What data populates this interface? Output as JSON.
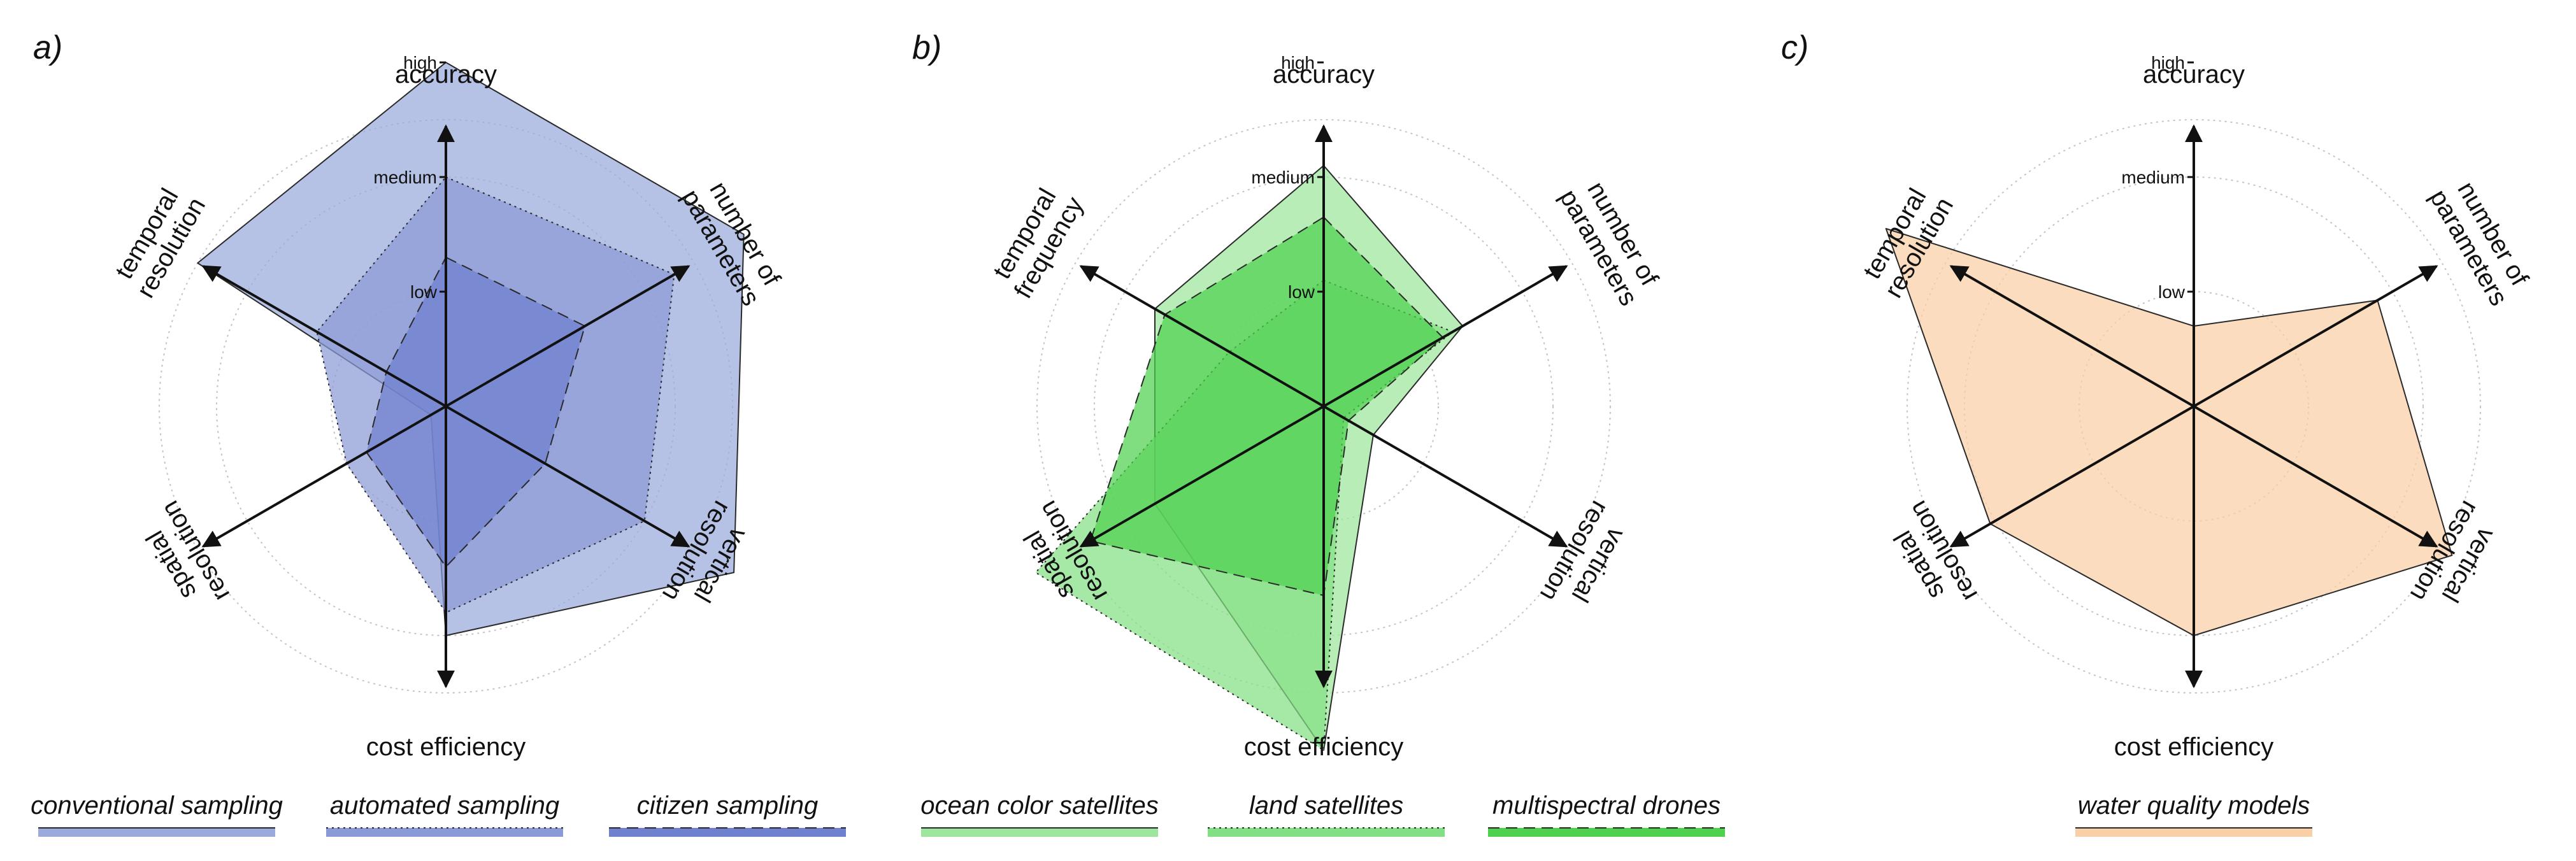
{
  "chart_data": [
    {
      "type": "radar",
      "panel": "a)",
      "axes": [
        "accuracy",
        "number of parameters",
        "vertical resolution",
        "cost efficiency",
        "spatial resolution",
        "temporal resolution"
      ],
      "axis_label_lines": [
        [
          "accuracy"
        ],
        [
          "number of",
          "parameters"
        ],
        [
          "vertical",
          "resolution"
        ],
        [
          "cost efficiency"
        ],
        [
          "spatial",
          "resolution"
        ],
        [
          "temporal",
          "resolution"
        ]
      ],
      "levels": [
        "low",
        "medium",
        "high"
      ],
      "range": [
        0,
        4
      ],
      "grid": "dotted circles",
      "legend_position": "bottom",
      "series": [
        {
          "name": "conventional sampling",
          "values": [
            3.0,
            3.0,
            2.9,
            2.0,
            0.15,
            2.5
          ],
          "color": "#9aaadb",
          "line": "solid"
        },
        {
          "name": "automated sampling",
          "values": [
            2.0,
            2.3,
            2.0,
            1.8,
            1.0,
            1.3
          ],
          "color": "#8a9ad6",
          "line": "dotted"
        },
        {
          "name": "citizen sampling",
          "values": [
            1.3,
            1.4,
            1.0,
            1.4,
            0.8,
            0.6
          ],
          "color": "#6f80cf",
          "line": "dashed"
        }
      ]
    },
    {
      "type": "radar",
      "panel": "b)",
      "axes": [
        "accuracy",
        "number of parameters",
        "vertical resolution",
        "cost efficiency",
        "spatial resolution",
        "temporal frequency"
      ],
      "axis_label_lines": [
        [
          "accuracy"
        ],
        [
          "number of",
          "parameters"
        ],
        [
          "vertical",
          "resolution"
        ],
        [
          "cost efficiency"
        ],
        [
          "spatial",
          "resolution"
        ],
        [
          "temporal",
          "frequency"
        ]
      ],
      "levels": [
        "low",
        "medium",
        "high"
      ],
      "range": [
        0,
        4
      ],
      "grid": "dotted circles",
      "legend_position": "bottom",
      "series": [
        {
          "name": "ocean color satellites",
          "values": [
            2.1,
            1.4,
            0.5,
            3.0,
            1.7,
            1.7
          ],
          "color": "#9de69d",
          "line": "solid"
        },
        {
          "name": "land satellites",
          "values": [
            1.1,
            1.3,
            0.2,
            3.0,
            2.9,
            0.95
          ],
          "color": "#83df83",
          "line": "dotted"
        },
        {
          "name": "multispectral drones",
          "values": [
            1.65,
            1.2,
            0.25,
            1.65,
            2.35,
            1.6
          ],
          "color": "#4fd14f",
          "line": "dashed"
        }
      ]
    },
    {
      "type": "radar",
      "panel": "c)",
      "axes": [
        "accuracy",
        "number of parameters",
        "vertical resolution",
        "cost efficiency",
        "spatial resolution",
        "temporal resolution"
      ],
      "axis_label_lines": [
        [
          "accuracy"
        ],
        [
          "number of",
          "parameters"
        ],
        [
          "vertical",
          "resolution"
        ],
        [
          "cost efficiency"
        ],
        [
          "spatial",
          "resolution"
        ],
        [
          "temporal",
          "resolution"
        ]
      ],
      "levels": [
        "low",
        "medium",
        "high"
      ],
      "range": [
        0,
        4
      ],
      "grid": "dotted circles",
      "legend_position": "bottom",
      "series": [
        {
          "name": "water quality models",
          "values": [
            0.7,
            1.85,
            2.6,
            2.0,
            2.05,
            3.1
          ],
          "color": "#f9cfa6",
          "line": "solid"
        }
      ]
    }
  ]
}
